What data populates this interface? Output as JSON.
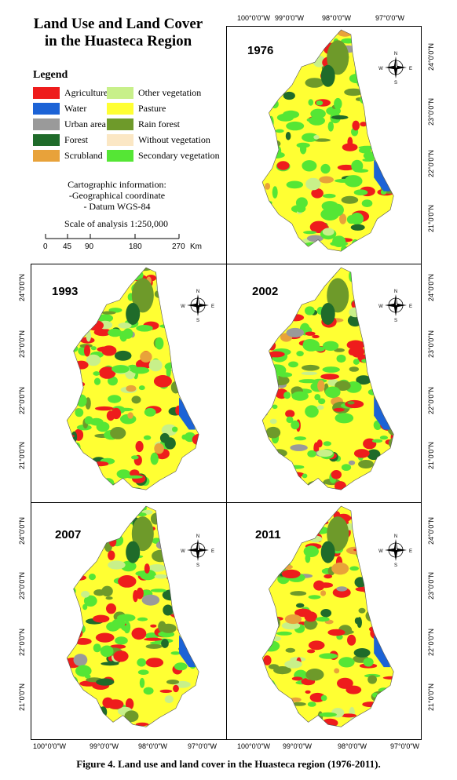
{
  "title_line1": "Land Use and Land Cover",
  "title_line2": "in the Huasteca Region",
  "legend": {
    "heading": "Legend",
    "items": [
      {
        "label": "Agriculture",
        "color": "#ee1c1c"
      },
      {
        "label": "Water",
        "color": "#1c63d6"
      },
      {
        "label": "Urban area",
        "color": "#9a9a9a"
      },
      {
        "label": "Forest",
        "color": "#1f6b2a"
      },
      {
        "label": "Scrubland",
        "color": "#e8a23a"
      },
      {
        "label": "Other vegetation",
        "color": "#c8f08a"
      },
      {
        "label": "Pasture",
        "color": "#ffff33"
      },
      {
        "label": "Rain forest",
        "color": "#6e9a2a"
      },
      {
        "label": "Without vegetation",
        "color": "#fbe7c4"
      },
      {
        "label": "Secondary vegetation",
        "color": "#55e635"
      }
    ]
  },
  "cartographic": {
    "line1": "Cartographic information:",
    "line2": "-Geographical coordinate",
    "line3": "- Datum WGS-84",
    "scale_text": "Scale of analysis 1:250,000"
  },
  "scale_bar": {
    "ticks": [
      "0",
      "45",
      "90",
      "180",
      "270"
    ],
    "unit": "Km"
  },
  "coords": {
    "lon": [
      "100°0'0\"W",
      "99°0'0\"W",
      "98°0'0\"W",
      "97°0'0\"W"
    ],
    "lat": [
      "24°0'0\"N",
      "23°0'0\"N",
      "22°0'0\"N",
      "21°0'0\"N"
    ]
  },
  "compass": {
    "n": "N",
    "s": "S",
    "e": "E",
    "w": "W"
  },
  "panels": [
    {
      "year": "1976"
    },
    {
      "year": "1993"
    },
    {
      "year": "2002"
    },
    {
      "year": "2007"
    },
    {
      "year": "2011"
    }
  ],
  "caption": "Figure 4. Land use and land cover in the Huasteca region (1976-2011)."
}
